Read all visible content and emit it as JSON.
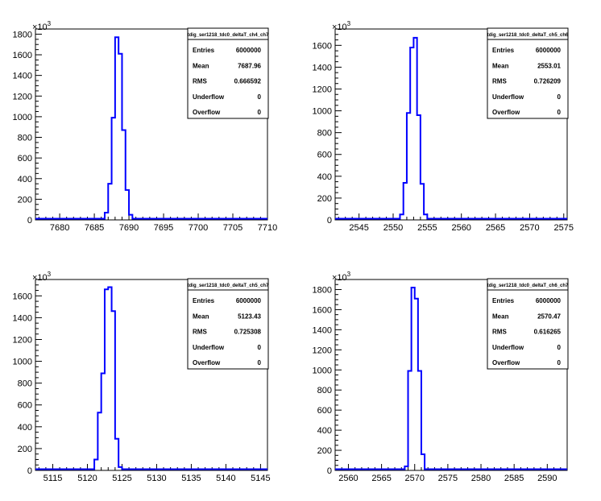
{
  "exponent_label_base": "×10",
  "exponent_label_power": "3",
  "stats_labels": [
    "Entries",
    "Mean",
    "RMS",
    "Underflow",
    "Overflow"
  ],
  "colors": {
    "histogram_line": "#0000ff",
    "axes": "#000000",
    "background": "#ffffff"
  },
  "chart_data": [
    {
      "type": "histogram",
      "title": "tdig_ser1218_tdc0_deltaT_ch4_ch7",
      "stats": [
        "6000000",
        "7687.96",
        "0.666592",
        "0",
        "0"
      ],
      "xlim": [
        7676.5,
        7710
      ],
      "ylim": [
        0,
        1850
      ],
      "xticks": [
        7680,
        7685,
        7690,
        7695,
        7700,
        7705,
        7710
      ],
      "yticks": [
        0,
        200,
        400,
        600,
        800,
        1000,
        1200,
        1400,
        1600,
        1800
      ],
      "bin_width": 0.5,
      "bins": [
        {
          "x": 7686.5,
          "y": 70
        },
        {
          "x": 7687.0,
          "y": 350
        },
        {
          "x": 7687.5,
          "y": 990
        },
        {
          "x": 7688.0,
          "y": 1770
        },
        {
          "x": 7688.5,
          "y": 1610
        },
        {
          "x": 7689.0,
          "y": 870
        },
        {
          "x": 7689.5,
          "y": 290
        },
        {
          "x": 7690.0,
          "y": 50
        }
      ]
    },
    {
      "type": "histogram",
      "title": "tdig_ser1218_tdc0_deltaT_ch5_ch6",
      "stats": [
        "6000000",
        "2553.01",
        "0.726209",
        "0",
        "0"
      ],
      "xlim": [
        2541.5,
        2575.5
      ],
      "ylim": [
        0,
        1750
      ],
      "xticks": [
        2545,
        2550,
        2555,
        2560,
        2565,
        2570,
        2575
      ],
      "yticks": [
        0,
        200,
        400,
        600,
        800,
        1000,
        1200,
        1400,
        1600
      ],
      "bin_width": 0.5,
      "bins": [
        {
          "x": 2551.0,
          "y": 50
        },
        {
          "x": 2551.5,
          "y": 340
        },
        {
          "x": 2552.0,
          "y": 980
        },
        {
          "x": 2552.5,
          "y": 1580
        },
        {
          "x": 2553.0,
          "y": 1670
        },
        {
          "x": 2553.5,
          "y": 960
        },
        {
          "x": 2554.0,
          "y": 330
        },
        {
          "x": 2554.5,
          "y": 50
        }
      ]
    },
    {
      "type": "histogram",
      "title": "tdig_ser1218_tdc0_deltaT_ch5_ch7",
      "stats": [
        "6000000",
        "5123.43",
        "0.725308",
        "0",
        "0"
      ],
      "xlim": [
        5112.5,
        5146
      ],
      "ylim": [
        0,
        1750
      ],
      "xticks": [
        5115,
        5120,
        5125,
        5130,
        5135,
        5140,
        5145
      ],
      "yticks": [
        0,
        200,
        400,
        600,
        800,
        1000,
        1200,
        1400,
        1600
      ],
      "bin_width": 0.5,
      "bins": [
        {
          "x": 5121.0,
          "y": 100
        },
        {
          "x": 5121.5,
          "y": 530
        },
        {
          "x": 5122.0,
          "y": 890
        },
        {
          "x": 5122.5,
          "y": 1660
        },
        {
          "x": 5123.0,
          "y": 1680
        },
        {
          "x": 5123.5,
          "y": 1460
        },
        {
          "x": 5124.0,
          "y": 290
        },
        {
          "x": 5124.5,
          "y": 30
        }
      ]
    },
    {
      "type": "histogram",
      "title": "tdig_ser1218_tdc0_deltaT_ch6_ch7",
      "stats": [
        "6000000",
        "2570.47",
        "0.616265",
        "0",
        "0"
      ],
      "xlim": [
        2558,
        2593
      ],
      "ylim": [
        0,
        1900
      ],
      "xticks": [
        2560,
        2565,
        2570,
        2575,
        2580,
        2585,
        2590
      ],
      "yticks": [
        0,
        200,
        400,
        600,
        800,
        1000,
        1200,
        1400,
        1600,
        1800
      ],
      "bin_width": 0.5,
      "bins": [
        {
          "x": 2568.5,
          "y": 40
        },
        {
          "x": 2569.0,
          "y": 990
        },
        {
          "x": 2569.5,
          "y": 1820
        },
        {
          "x": 2570.0,
          "y": 1710
        },
        {
          "x": 2570.5,
          "y": 990
        },
        {
          "x": 2571.0,
          "y": 160
        }
      ]
    }
  ]
}
